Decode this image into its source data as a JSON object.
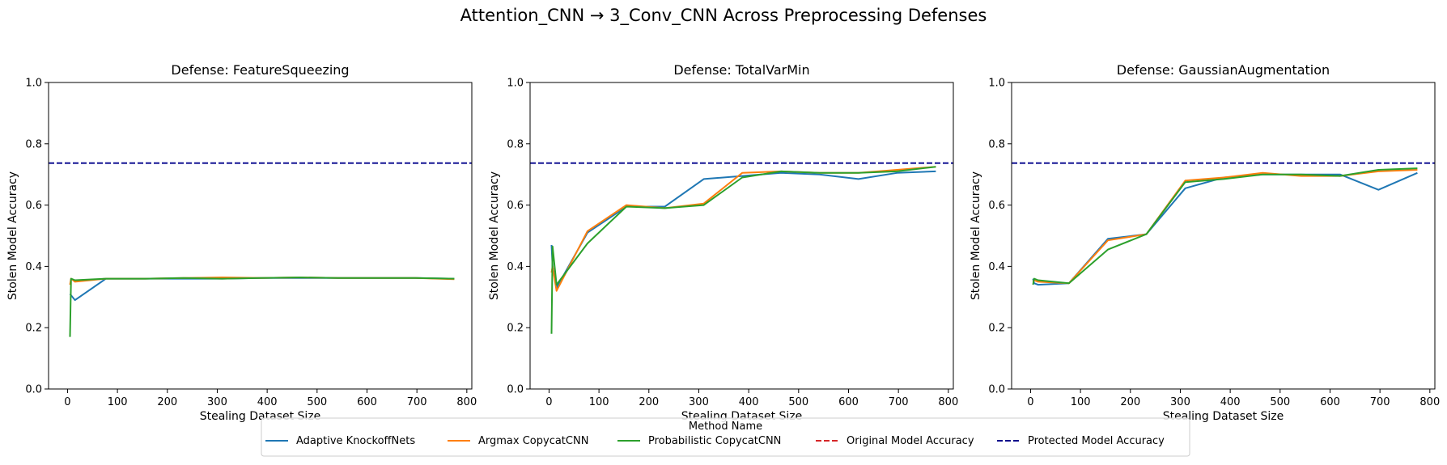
{
  "figure": {
    "suptitle": "Attention_CNN → 3_Conv_CNN Across Preprocessing Defenses",
    "legend": {
      "title": "Method Name",
      "placement": "bottom-center",
      "entries": [
        {
          "label": "Adaptive KnockoffNets",
          "color": "#1f77b4",
          "style": "solid"
        },
        {
          "label": "Argmax CopycatCNN",
          "color": "#ff7f0e",
          "style": "solid"
        },
        {
          "label": "Probabilistic CopycatCNN",
          "color": "#2ca02c",
          "style": "solid"
        },
        {
          "label": "Original Model Accuracy",
          "color": "#d62728",
          "style": "dashed"
        },
        {
          "label": "Protected Model Accuracy",
          "color": "#00008b",
          "style": "dashed"
        }
      ]
    }
  },
  "chart_data": [
    {
      "type": "line",
      "title": "Defense: FeatureSqueezing",
      "xlabel": "Stealing Dataset Size",
      "ylabel": "Stolen Model Accuracy",
      "xlim": [
        -38,
        810
      ],
      "ylim": [
        0,
        1
      ],
      "xticks": [
        0,
        100,
        200,
        300,
        400,
        500,
        600,
        700,
        800
      ],
      "yticks": [
        0.0,
        0.2,
        0.4,
        0.6,
        0.8,
        1.0
      ],
      "grid": false,
      "hlines": [
        {
          "name": "Protected Model Accuracy",
          "y": 0.737,
          "color": "#00008b"
        }
      ],
      "series": [
        {
          "name": "Adaptive KnockoffNets",
          "color": "#1f77b4",
          "x": [
            5,
            15,
            77,
            155,
            232,
            310,
            387,
            465,
            542,
            620,
            697,
            775
          ],
          "y": [
            0.31,
            0.29,
            0.36,
            0.36,
            0.36,
            0.36,
            0.362,
            0.362,
            0.362,
            0.362,
            0.362,
            0.36
          ]
        },
        {
          "name": "Argmax CopycatCNN",
          "color": "#ff7f0e",
          "x": [
            5,
            7,
            15,
            77,
            155,
            232,
            310,
            387,
            465,
            542,
            620,
            697,
            775
          ],
          "y": [
            0.34,
            0.36,
            0.35,
            0.36,
            0.36,
            0.362,
            0.364,
            0.362,
            0.364,
            0.362,
            0.362,
            0.362,
            0.358
          ]
        },
        {
          "name": "Probabilistic CopycatCNN",
          "color": "#2ca02c",
          "x": [
            5,
            7,
            15,
            77,
            155,
            232,
            310,
            387,
            465,
            542,
            620,
            697,
            775
          ],
          "y": [
            0.17,
            0.36,
            0.355,
            0.36,
            0.36,
            0.362,
            0.36,
            0.362,
            0.364,
            0.362,
            0.362,
            0.362,
            0.36
          ]
        }
      ]
    },
    {
      "type": "line",
      "title": "Defense: TotalVarMin",
      "xlabel": "Stealing Dataset Size",
      "ylabel": "Stolen Model Accuracy",
      "xlim": [
        -38,
        810
      ],
      "ylim": [
        0,
        1
      ],
      "xticks": [
        0,
        100,
        200,
        300,
        400,
        500,
        600,
        700,
        800
      ],
      "yticks": [
        0.0,
        0.2,
        0.4,
        0.6,
        0.8,
        1.0
      ],
      "grid": false,
      "hlines": [
        {
          "name": "Protected Model Accuracy",
          "y": 0.737,
          "color": "#00008b"
        }
      ],
      "series": [
        {
          "name": "Adaptive KnockoffNets",
          "color": "#1f77b4",
          "x": [
            5,
            7,
            15,
            77,
            155,
            232,
            310,
            387,
            465,
            542,
            620,
            697,
            775
          ],
          "y": [
            0.47,
            0.4,
            0.33,
            0.51,
            0.595,
            0.595,
            0.685,
            0.695,
            0.705,
            0.7,
            0.685,
            0.705,
            0.71
          ]
        },
        {
          "name": "Argmax CopycatCNN",
          "color": "#ff7f0e",
          "x": [
            5,
            7,
            15,
            77,
            155,
            232,
            310,
            387,
            465,
            542,
            620,
            697,
            775
          ],
          "y": [
            0.38,
            0.4,
            0.32,
            0.515,
            0.6,
            0.59,
            0.605,
            0.705,
            0.71,
            0.705,
            0.705,
            0.715,
            0.725
          ]
        },
        {
          "name": "Probabilistic CopycatCNN",
          "color": "#2ca02c",
          "x": [
            5,
            7,
            15,
            77,
            155,
            232,
            310,
            387,
            465,
            542,
            620,
            697,
            775
          ],
          "y": [
            0.18,
            0.465,
            0.34,
            0.475,
            0.595,
            0.59,
            0.6,
            0.69,
            0.71,
            0.705,
            0.705,
            0.71,
            0.725
          ]
        }
      ]
    },
    {
      "type": "line",
      "title": "Defense: GaussianAugmentation",
      "xlabel": "Stealing Dataset Size",
      "ylabel": "Stolen Model Accuracy",
      "xlim": [
        -38,
        810
      ],
      "ylim": [
        0,
        1
      ],
      "xticks": [
        0,
        100,
        200,
        300,
        400,
        500,
        600,
        700,
        800
      ],
      "yticks": [
        0.0,
        0.2,
        0.4,
        0.6,
        0.8,
        1.0
      ],
      "grid": false,
      "hlines": [
        {
          "name": "Protected Model Accuracy",
          "y": 0.737,
          "color": "#00008b"
        }
      ],
      "series": [
        {
          "name": "Adaptive KnockoffNets",
          "color": "#1f77b4",
          "x": [
            5,
            7,
            15,
            77,
            155,
            232,
            310,
            387,
            465,
            542,
            620,
            697,
            775
          ],
          "y": [
            0.36,
            0.345,
            0.34,
            0.345,
            0.49,
            0.505,
            0.655,
            0.69,
            0.7,
            0.7,
            0.7,
            0.65,
            0.705
          ]
        },
        {
          "name": "Argmax CopycatCNN",
          "color": "#ff7f0e",
          "x": [
            5,
            7,
            15,
            77,
            155,
            232,
            310,
            387,
            465,
            542,
            620,
            697,
            775
          ],
          "y": [
            0.35,
            0.355,
            0.35,
            0.345,
            0.485,
            0.505,
            0.68,
            0.69,
            0.705,
            0.695,
            0.695,
            0.71,
            0.715
          ]
        },
        {
          "name": "Probabilistic CopycatCNN",
          "color": "#2ca02c",
          "x": [
            5,
            7,
            15,
            77,
            155,
            232,
            310,
            387,
            465,
            542,
            620,
            697,
            775
          ],
          "y": [
            0.34,
            0.36,
            0.355,
            0.345,
            0.455,
            0.505,
            0.675,
            0.685,
            0.7,
            0.7,
            0.695,
            0.715,
            0.72
          ]
        }
      ]
    }
  ]
}
